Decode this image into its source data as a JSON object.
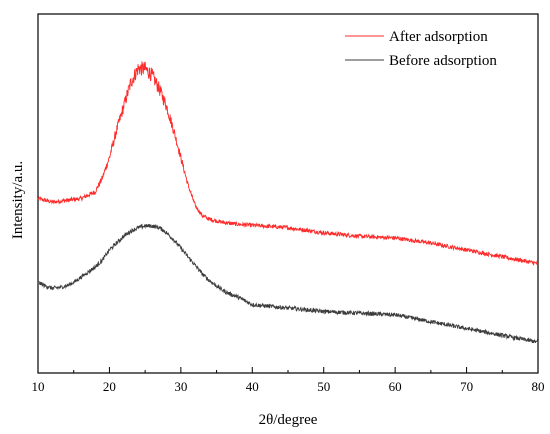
{
  "chart_data": {
    "type": "line",
    "xlabel": "2θ/degree",
    "ylabel": "Intensity/a.u.",
    "xlim": [
      10,
      80
    ],
    "x_ticks": [
      "10",
      "20",
      "30",
      "40",
      "50",
      "60",
      "70",
      "80"
    ],
    "y_ticks_shown": false,
    "grid": false,
    "legend_position": "top-right",
    "series": [
      {
        "name": "After adsorption",
        "color": "#ff2a2a",
        "x": [
          10,
          12,
          14,
          16,
          18,
          19,
          20,
          21,
          22,
          23,
          24,
          25,
          26,
          27,
          28,
          29,
          30,
          31,
          32,
          33,
          34,
          36,
          38,
          40,
          45,
          50,
          55,
          60,
          65,
          70,
          75,
          80
        ],
        "y": [
          0.31,
          0.3,
          0.305,
          0.31,
          0.33,
          0.37,
          0.43,
          0.51,
          0.58,
          0.65,
          0.69,
          0.69,
          0.67,
          0.63,
          0.58,
          0.51,
          0.43,
          0.35,
          0.29,
          0.26,
          0.25,
          0.24,
          0.235,
          0.232,
          0.225,
          0.21,
          0.2,
          0.195,
          0.18,
          0.16,
          0.14,
          0.12
        ]
      },
      {
        "name": "Before adsorption",
        "color": "#3c3c3c",
        "x": [
          10,
          11,
          12,
          13,
          14,
          15,
          16,
          17,
          18,
          19,
          20,
          21,
          22,
          23,
          24,
          25,
          26,
          27,
          28,
          29,
          30,
          31,
          32,
          33,
          34,
          35,
          36,
          37,
          38,
          40,
          45,
          50,
          55,
          60,
          65,
          70,
          75,
          80
        ],
        "y": [
          0.065,
          0.055,
          0.048,
          0.05,
          0.055,
          0.065,
          0.08,
          0.095,
          0.11,
          0.13,
          0.16,
          0.18,
          0.2,
          0.215,
          0.225,
          0.23,
          0.23,
          0.225,
          0.21,
          0.19,
          0.165,
          0.14,
          0.115,
          0.09,
          0.07,
          0.055,
          0.04,
          0.03,
          0.022,
          0.0,
          -0.01,
          -0.02,
          -0.025,
          -0.03,
          -0.05,
          -0.07,
          -0.09,
          -0.11
        ]
      }
    ]
  }
}
